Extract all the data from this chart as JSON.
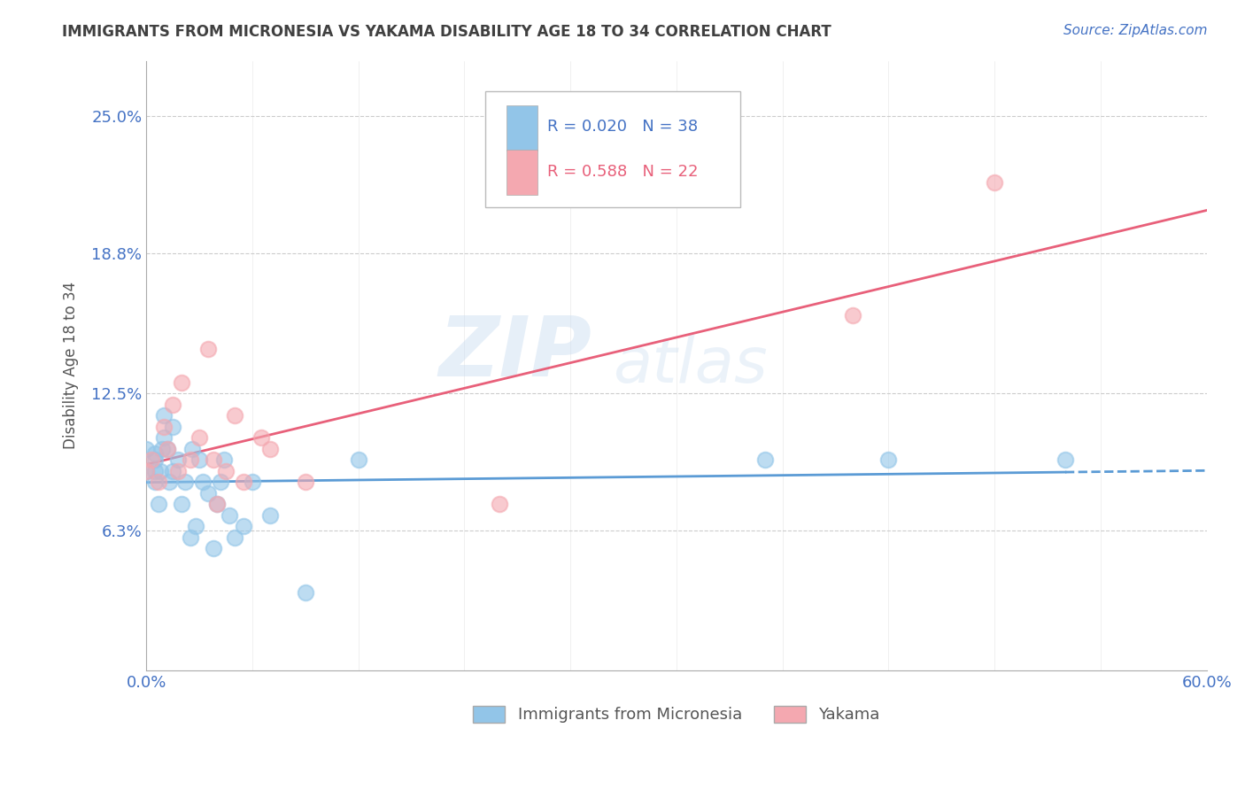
{
  "title": "IMMIGRANTS FROM MICRONESIA VS YAKAMA DISABILITY AGE 18 TO 34 CORRELATION CHART",
  "source_text": "Source: ZipAtlas.com",
  "ylabel": "Disability Age 18 to 34",
  "xlim": [
    0.0,
    0.6
  ],
  "ylim": [
    0.0,
    0.275
  ],
  "x_tick_labels": [
    "0.0%",
    "60.0%"
  ],
  "y_tick_labels": [
    "6.3%",
    "12.5%",
    "18.8%",
    "25.0%"
  ],
  "y_tick_values": [
    0.063,
    0.125,
    0.188,
    0.25
  ],
  "legend_r1": "R = 0.020",
  "legend_n1": "N = 38",
  "legend_r2": "R = 0.588",
  "legend_n2": "N = 22",
  "blue_color": "#92C5E8",
  "pink_color": "#F4A8B0",
  "blue_line_color": "#5B9BD5",
  "pink_line_color": "#E8607A",
  "watermark_line1": "ZIP",
  "watermark_line2": "atlas",
  "label_micronesia": "Immigrants from Micronesia",
  "label_yakama": "Yakama",
  "micronesia_x": [
    0.0,
    0.0,
    0.005,
    0.005,
    0.005,
    0.005,
    0.007,
    0.008,
    0.009,
    0.01,
    0.01,
    0.012,
    0.013,
    0.015,
    0.015,
    0.018,
    0.02,
    0.022,
    0.025,
    0.026,
    0.028,
    0.03,
    0.032,
    0.035,
    0.038,
    0.04,
    0.042,
    0.044,
    0.047,
    0.05,
    0.055,
    0.06,
    0.07,
    0.09,
    0.12,
    0.35,
    0.42,
    0.52
  ],
  "micronesia_y": [
    0.09,
    0.1,
    0.085,
    0.09,
    0.095,
    0.098,
    0.075,
    0.09,
    0.1,
    0.105,
    0.115,
    0.1,
    0.085,
    0.09,
    0.11,
    0.095,
    0.075,
    0.085,
    0.06,
    0.1,
    0.065,
    0.095,
    0.085,
    0.08,
    0.055,
    0.075,
    0.085,
    0.095,
    0.07,
    0.06,
    0.065,
    0.085,
    0.07,
    0.035,
    0.095,
    0.095,
    0.095,
    0.095
  ],
  "yakama_x": [
    0.0,
    0.003,
    0.007,
    0.01,
    0.012,
    0.015,
    0.018,
    0.02,
    0.025,
    0.03,
    0.035,
    0.038,
    0.04,
    0.045,
    0.05,
    0.055,
    0.065,
    0.07,
    0.09,
    0.2,
    0.4,
    0.48
  ],
  "yakama_y": [
    0.09,
    0.095,
    0.085,
    0.11,
    0.1,
    0.12,
    0.09,
    0.13,
    0.095,
    0.105,
    0.145,
    0.095,
    0.075,
    0.09,
    0.115,
    0.085,
    0.105,
    0.1,
    0.085,
    0.075,
    0.16,
    0.22
  ],
  "background_color": "#FFFFFF",
  "grid_color": "#CCCCCC",
  "text_color": "#4472C4",
  "title_color": "#404040"
}
